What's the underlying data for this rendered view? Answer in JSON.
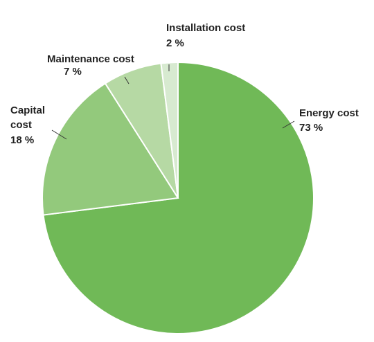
{
  "chart_data": {
    "type": "pie",
    "categories": [
      "Energy cost",
      "Capital cost",
      "Maintenance cost",
      "Installation cost"
    ],
    "values": [
      73,
      18,
      7,
      2
    ],
    "value_labels": [
      "73 %",
      "18 %",
      "7 %",
      "2 %"
    ],
    "colors": [
      "#70b957",
      "#93c97c",
      "#b6d9a4",
      "#d7ead0"
    ]
  }
}
